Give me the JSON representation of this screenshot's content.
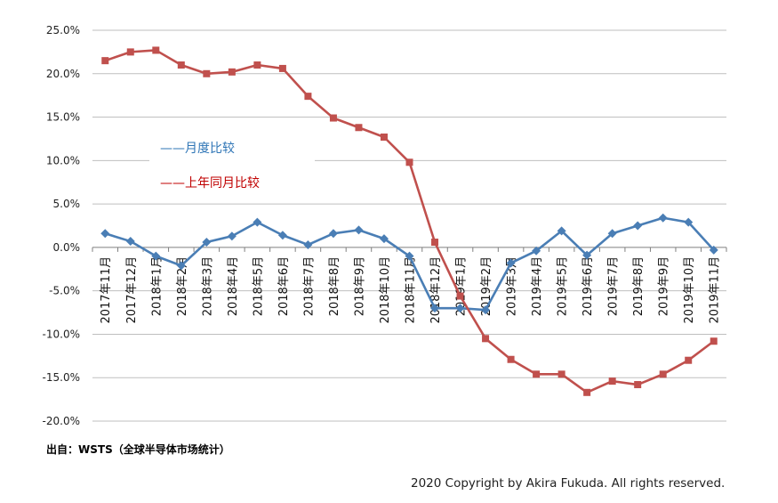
{
  "chart_data": {
    "type": "line",
    "categories": [
      "2017年11月",
      "2017年12月",
      "2018年1月",
      "2018年2月",
      "2018年3月",
      "2018年4月",
      "2018年5月",
      "2018年6月",
      "2018年7月",
      "2018年8月",
      "2018年9月",
      "2018年10月",
      "2018年11月",
      "2018年12月",
      "2019年1月",
      "2019年2月",
      "2019年3月",
      "2019年4月",
      "2019年5月",
      "2019年6月",
      "2019年7月",
      "2019年8月",
      "2019年9月",
      "2019年10月",
      "2019年11月"
    ],
    "series": [
      {
        "name": "月度比较",
        "color": "#4a7eb5",
        "marker": "diamond",
        "values": [
          1.6,
          0.7,
          -1.0,
          -2.1,
          0.6,
          1.3,
          2.9,
          1.4,
          0.3,
          1.6,
          2.0,
          1.0,
          -1.0,
          -7.0,
          -7.0,
          -7.2,
          -1.8,
          -0.4,
          1.9,
          -0.9,
          1.6,
          2.5,
          3.4,
          2.9,
          -0.3
        ]
      },
      {
        "name": "上年同月比较",
        "color": "#c0504d",
        "marker": "square",
        "values": [
          21.5,
          22.5,
          22.7,
          21.0,
          20.0,
          20.2,
          21.0,
          20.6,
          17.4,
          14.9,
          13.8,
          12.7,
          9.8,
          0.6,
          -5.6,
          -10.5,
          -12.9,
          -14.6,
          -14.6,
          -16.7,
          -15.4,
          -15.8,
          -14.6,
          -13.0,
          -10.8
        ]
      }
    ],
    "y_ticks": [
      "25.0%",
      "20.0%",
      "15.0%",
      "10.0%",
      "5.0%",
      "0.0%",
      "-5.0%",
      "-10.0%",
      "-15.0%",
      "-20.0%"
    ],
    "ylim": [
      -20,
      25
    ],
    "y_step": 5,
    "grid": true,
    "legend_position": "left-center",
    "legend": [
      {
        "marker": "——",
        "label": "月度比较",
        "color": "#2e75b6"
      },
      {
        "marker": "——",
        "label": "上年同月比较",
        "color": "#c00000"
      }
    ]
  },
  "footer": {
    "source": "出自：WSTS（全球半导体市场统计）",
    "copyright": "2020 Copyright by Akira Fukuda. All rights reserved."
  }
}
